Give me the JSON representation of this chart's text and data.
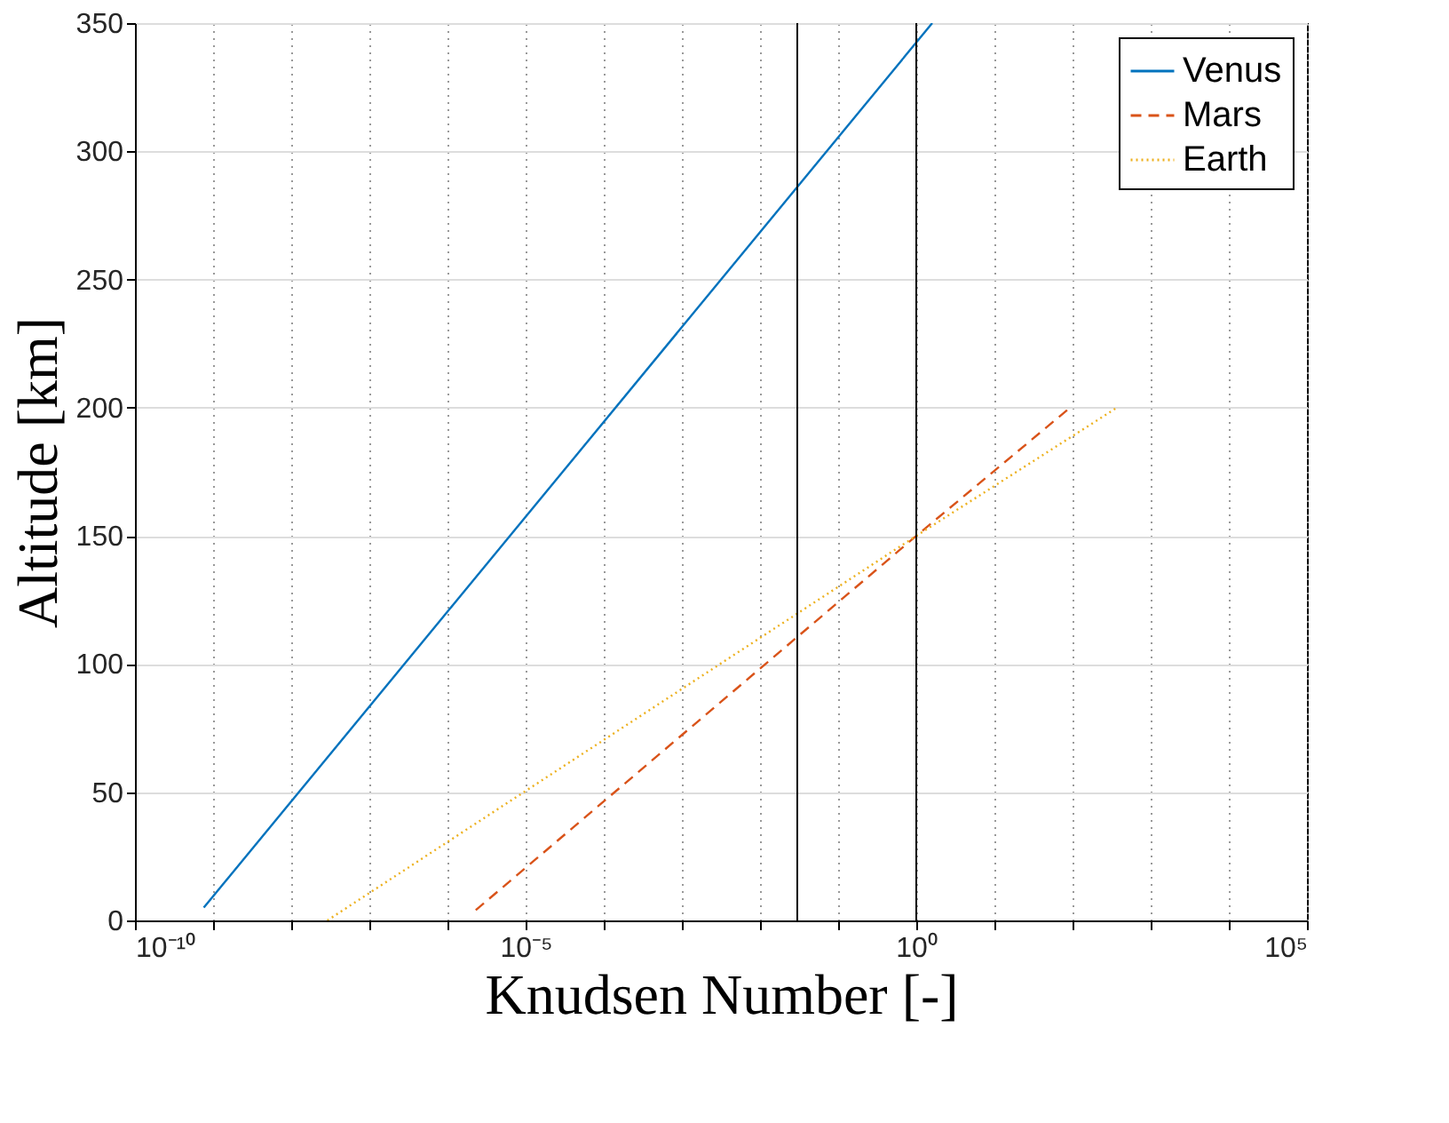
{
  "chart_data": {
    "type": "line",
    "xlabel": "Knudsen Number [-]",
    "ylabel": "Altitude [km]",
    "log": "x",
    "xlim": [
      1e-10,
      100000.0
    ],
    "xticks": [
      {
        "value": 1e-10,
        "label": "10⁻¹⁰"
      },
      {
        "value": 1e-09,
        "label": null
      },
      {
        "value": 1e-08,
        "label": null
      },
      {
        "value": 1e-07,
        "label": null
      },
      {
        "value": 1e-06,
        "label": null
      },
      {
        "value": 1e-05,
        "label": "10⁻⁵"
      },
      {
        "value": 0.0001,
        "label": null
      },
      {
        "value": 0.001,
        "label": null
      },
      {
        "value": 0.01,
        "label": null
      },
      {
        "value": 0.1,
        "label": null
      },
      {
        "value": 1,
        "label": "10⁰"
      },
      {
        "value": 10,
        "label": null
      },
      {
        "value": 100,
        "label": null
      },
      {
        "value": 1000,
        "label": null
      },
      {
        "value": 10000,
        "label": null
      },
      {
        "value": 100000,
        "label": "10⁵"
      }
    ],
    "ylim": [
      0,
      350
    ],
    "yticks": [
      0,
      50,
      100,
      150,
      200,
      250,
      300,
      350
    ],
    "grid": true,
    "legend": "top right",
    "series": [
      {
        "name": "Venus",
        "color": "#0072bd",
        "line_style": "solid",
        "x": [
          7.6e-10,
          1.6
        ],
        "values": [
          5,
          350
        ]
      },
      {
        "name": "Mars",
        "color": "#d95319",
        "line_style": "dashed",
        "x": [
          2.3e-06,
          1,
          93
        ],
        "values": [
          4,
          150,
          200
        ]
      },
      {
        "name": "Earth",
        "color": "#edb120",
        "line_style": "dotted",
        "x": [
          2.9e-08,
          1,
          370
        ],
        "values": [
          0,
          150,
          200
        ]
      }
    ],
    "ref_lines": [
      {
        "axis": "x",
        "value": 0.03,
        "color": "#000000"
      },
      {
        "axis": "x",
        "value": 1,
        "color": "#000000"
      }
    ]
  }
}
